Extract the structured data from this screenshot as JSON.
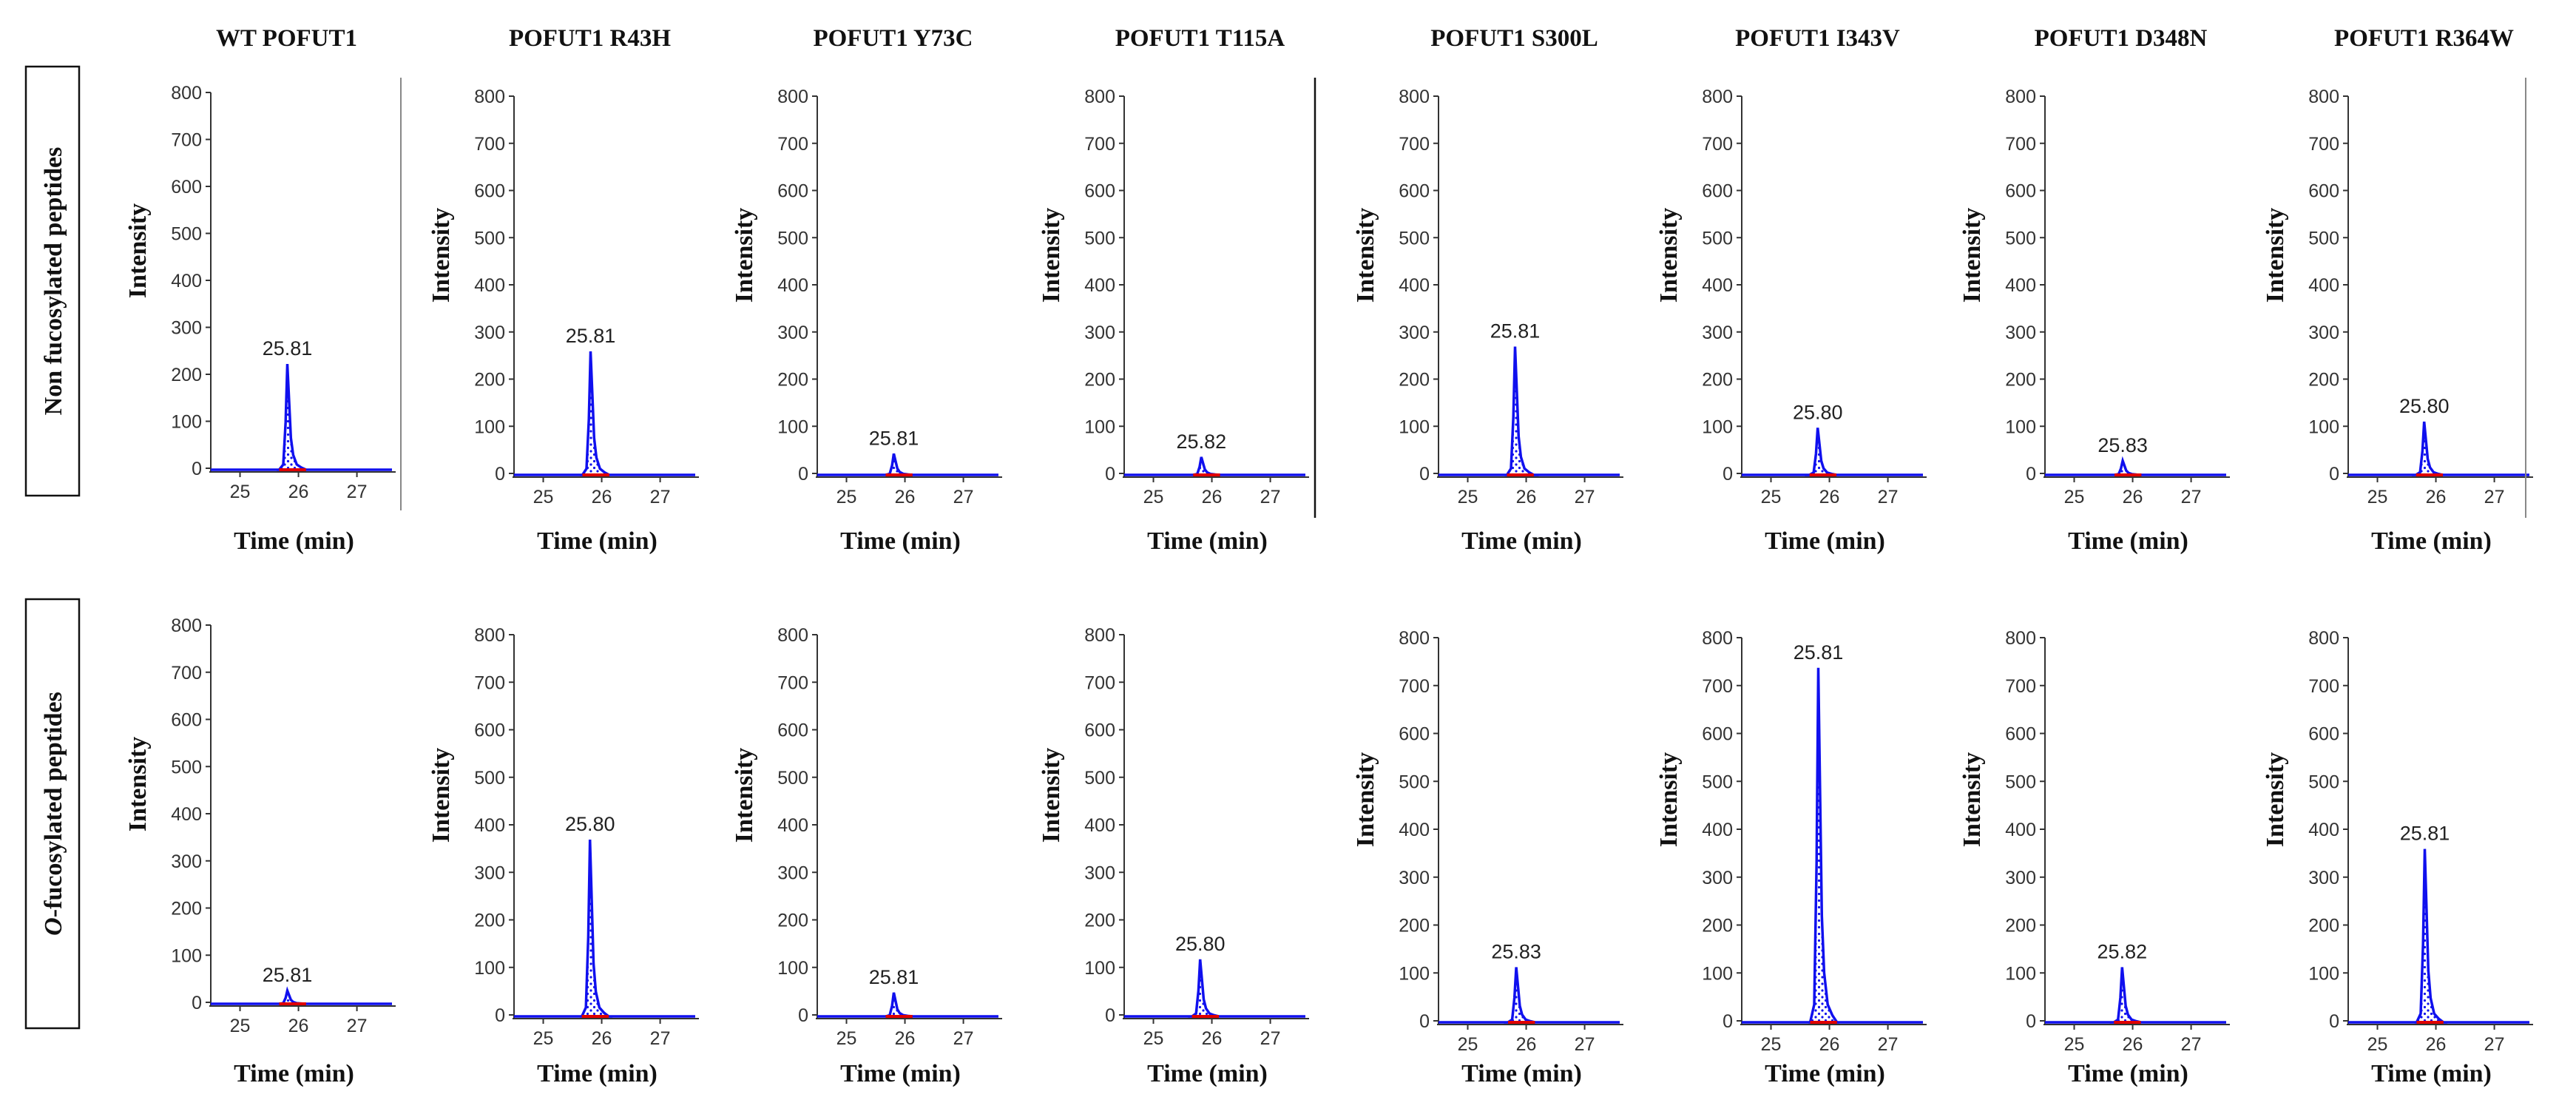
{
  "column_titles": [
    "WT POFUT1",
    "POFUT1 R43H",
    "POFUT1 Y73C",
    "POFUT1 T115A",
    "POFUT1 S300L",
    "POFUT1 I343V",
    "POFUT1 D348N",
    "POFUT1 R364W"
  ],
  "row_labels": [
    {
      "prefix": "",
      "rest": "Non fucosylated peptides"
    },
    {
      "prefix": "O",
      "rest": "-fucosylated peptides"
    }
  ],
  "colors": {
    "trace": "#1010ee",
    "baseline_marker": "#e00000",
    "axis": "#333333"
  },
  "chart_data": [
    {
      "type": "line",
      "row": "Non fucosylated peptides",
      "xlabel": "Time (min)",
      "ylabel": "Intensity",
      "ylim": [
        0,
        800
      ],
      "yticks": [
        0,
        100,
        200,
        300,
        400,
        500,
        600,
        700,
        800
      ],
      "xlim": [
        24.5,
        27.6
      ],
      "xticks": [
        25,
        26,
        27
      ],
      "series": [
        {
          "name": "WT POFUT1",
          "peak_time": 25.81,
          "peak_intensity": 225,
          "peak_label": "25.81"
        },
        {
          "name": "POFUT1 R43H",
          "peak_time": 25.81,
          "peak_intensity": 262,
          "peak_label": "25.81"
        },
        {
          "name": "POFUT1 Y73C",
          "peak_time": 25.81,
          "peak_intensity": 45,
          "peak_label": "25.81"
        },
        {
          "name": "POFUT1 T115A",
          "peak_time": 25.82,
          "peak_intensity": 38,
          "peak_label": "25.82"
        },
        {
          "name": "POFUT1 S300L",
          "peak_time": 25.81,
          "peak_intensity": 272,
          "peak_label": "25.81"
        },
        {
          "name": "POFUT1 I343V",
          "peak_time": 25.8,
          "peak_intensity": 100,
          "peak_label": "25.80"
        },
        {
          "name": "POFUT1 D348N",
          "peak_time": 25.83,
          "peak_intensity": 30,
          "peak_label": "25.83"
        },
        {
          "name": "POFUT1 R364W",
          "peak_time": 25.8,
          "peak_intensity": 113,
          "peak_label": "25.80"
        }
      ]
    },
    {
      "type": "line",
      "row": "O-fucosylated peptides",
      "xlabel": "Time (min)",
      "ylabel": "Intensity",
      "ylim": [
        0,
        800
      ],
      "yticks": [
        0,
        100,
        200,
        300,
        400,
        500,
        600,
        700,
        800
      ],
      "xlim": [
        24.5,
        27.6
      ],
      "xticks": [
        25,
        26,
        27
      ],
      "series": [
        {
          "name": "WT POFUT1",
          "peak_time": 25.81,
          "peak_intensity": 28,
          "peak_label": "25.81"
        },
        {
          "name": "POFUT1 R43H",
          "peak_time": 25.8,
          "peak_intensity": 372,
          "peak_label": "25.80"
        },
        {
          "name": "POFUT1 Y73C",
          "peak_time": 25.81,
          "peak_intensity": 50,
          "peak_label": "25.81"
        },
        {
          "name": "POFUT1 T115A",
          "peak_time": 25.8,
          "peak_intensity": 120,
          "peak_label": "25.80"
        },
        {
          "name": "POFUT1 S300L",
          "peak_time": 25.83,
          "peak_intensity": 115,
          "peak_label": "25.83"
        },
        {
          "name": "POFUT1 I343V",
          "peak_time": 25.81,
          "peak_intensity": 740,
          "peak_label": "25.81"
        },
        {
          "name": "POFUT1 D348N",
          "peak_time": 25.82,
          "peak_intensity": 115,
          "peak_label": "25.82"
        },
        {
          "name": "POFUT1 R364W",
          "peak_time": 25.81,
          "peak_intensity": 362,
          "peak_label": "25.81"
        }
      ]
    }
  ]
}
